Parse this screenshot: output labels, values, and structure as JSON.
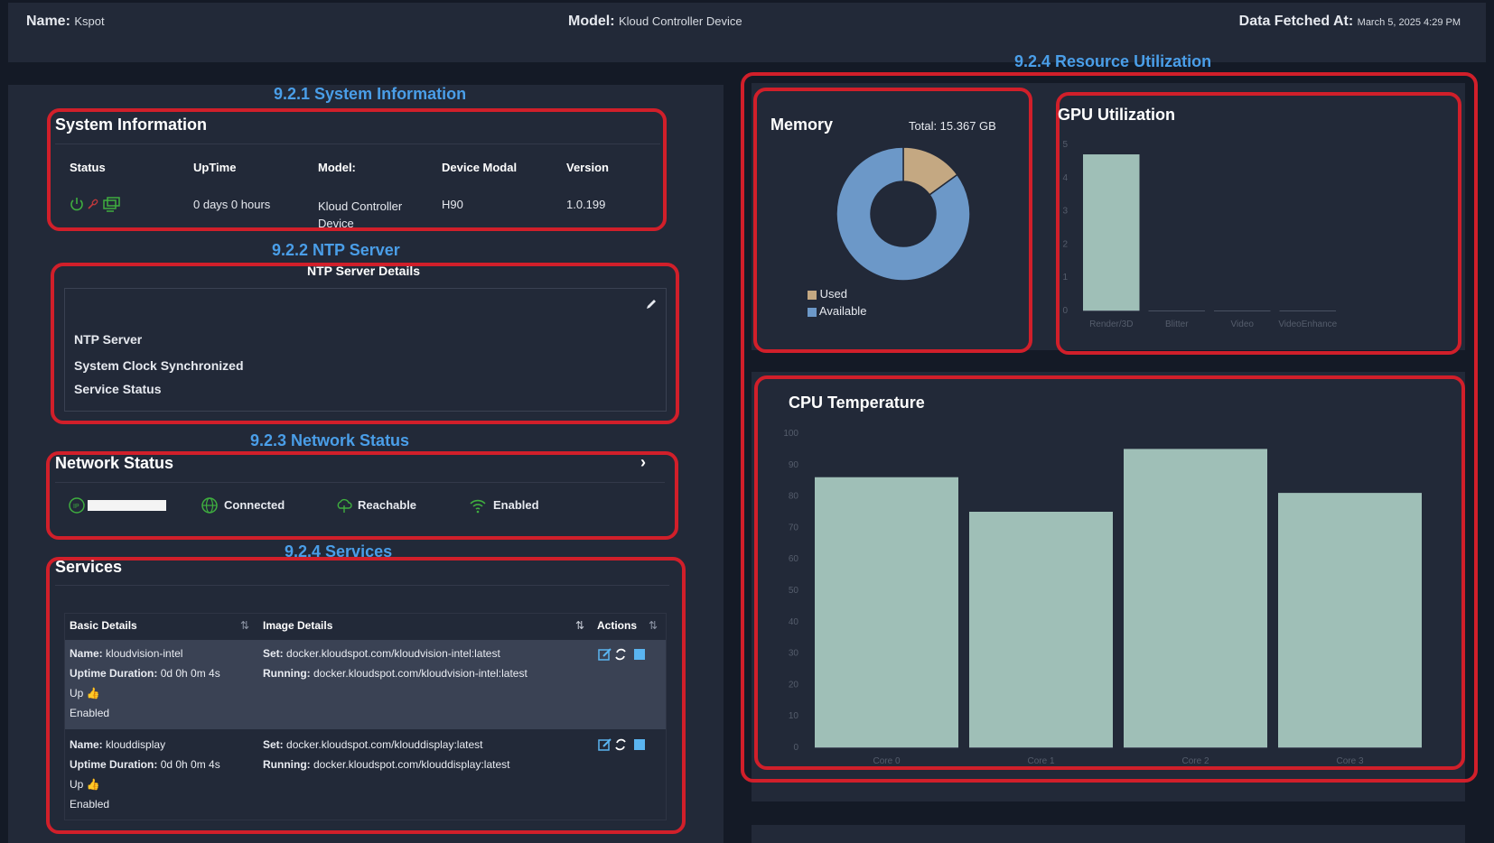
{
  "header": {
    "name_label": "Name:",
    "name_value": "Kspot",
    "model_label": "Model:",
    "model_value": "Kloud Controller Device",
    "fetched_label": "Data Fetched At:",
    "fetched_value": "March 5, 2025 4:29 PM"
  },
  "annotations": {
    "system_info": "9.2.1 System Information",
    "ntp": "9.2.2 NTP Server",
    "network": "9.2.3 Network Status",
    "services": "9.2.4 Services",
    "resource": "9.2.4 Resource Utilization"
  },
  "system_info": {
    "title": "System Information",
    "headers": [
      "Status",
      "UpTime",
      "Model:",
      "Device Modal",
      "Version"
    ],
    "uptime": "0 days 0 hours",
    "model": "Kloud Controller Device",
    "device_modal": "H90",
    "version": "1.0.199",
    "status_icons": [
      "power-icon",
      "link-broken-icon",
      "display-icon"
    ]
  },
  "ntp": {
    "title": "NTP Server Details",
    "rows": [
      "NTP Server",
      "System Clock Synchronized",
      "Service Status"
    ]
  },
  "network": {
    "title": "Network Status",
    "connected": "Connected",
    "reachable": "Reachable",
    "enabled": "Enabled",
    "colors": {
      "ok": "#3fae3f"
    }
  },
  "services": {
    "title": "Services",
    "headers": [
      "Basic Details",
      "Image Details",
      "Actions"
    ],
    "labels": {
      "name": "Name:",
      "uptime": "Uptime Duration:",
      "set": "Set:",
      "running": "Running:"
    },
    "rows": [
      {
        "name": "kloudvision-intel",
        "uptime": "0d 0h 0m 4s",
        "state": "Up",
        "enabled": "Enabled",
        "set": "docker.kloudspot.com/kloudvision-intel:latest",
        "running": "docker.kloudspot.com/kloudvision-intel:latest"
      },
      {
        "name": "klouddisplay",
        "uptime": "0d 0h 0m 4s",
        "state": "Up",
        "enabled": "Enabled",
        "set": "docker.kloudspot.com/klouddisplay:latest",
        "running": "docker.kloudspot.com/klouddisplay:latest"
      }
    ]
  },
  "memory": {
    "title": "Memory",
    "total": "Total: 15.367 GB",
    "legend_used": "Used",
    "legend_available": "Available"
  },
  "gpu": {
    "title": "GPU Utilization"
  },
  "cpu": {
    "title": "CPU Temperature"
  },
  "chart_data": [
    {
      "type": "pie",
      "title": "Memory",
      "categories": [
        "Used",
        "Available"
      ],
      "values": [
        0.15,
        0.85
      ],
      "colors": [
        "#c4a882",
        "#6c98c8"
      ]
    },
    {
      "type": "bar",
      "title": "GPU Utilization",
      "categories": [
        "Render/3D",
        "Blitter",
        "Video",
        "VideoEnhance"
      ],
      "values": [
        4.7,
        0,
        0,
        0
      ],
      "ylim": [
        0,
        5
      ],
      "yticks": [
        0,
        1,
        2,
        3,
        4,
        5
      ],
      "color": "#9fbfb7"
    },
    {
      "type": "bar",
      "title": "CPU Temperature",
      "categories": [
        "Core 0",
        "Core 1",
        "Core 2",
        "Core 3"
      ],
      "values": [
        86,
        75,
        95,
        81
      ],
      "ylim": [
        0,
        100
      ],
      "yticks": [
        0,
        10,
        20,
        30,
        40,
        50,
        60,
        70,
        80,
        90,
        100
      ],
      "color": "#9fbfb7"
    }
  ]
}
